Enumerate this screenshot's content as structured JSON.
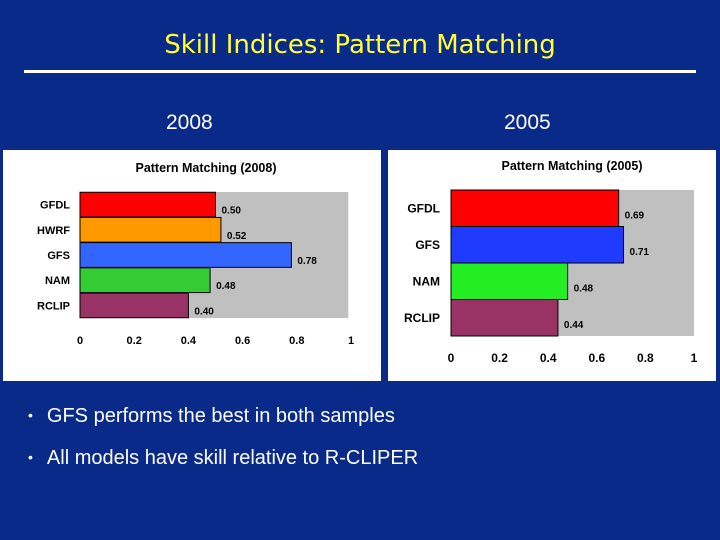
{
  "slide": {
    "title": "Skill Indices: Pattern Matching",
    "left_year": "2008",
    "right_year": "2005",
    "bullets": [
      "GFS performs the best in both samples",
      "All models have skill relative to R-CLIPER"
    ]
  },
  "colors": {
    "background": "#0A2A8A",
    "title": "#FFFF33",
    "plot_area": "#C0C0C0"
  },
  "chart_data": [
    {
      "type": "bar",
      "orientation": "horizontal",
      "title": "Pattern Matching (2008)",
      "categories": [
        "GFDL",
        "HWRF",
        "GFS",
        "NAM",
        "RCLIP"
      ],
      "values": [
        0.5,
        0.52,
        0.78,
        0.48,
        0.4
      ],
      "value_labels": [
        "0.50",
        "0.52",
        "0.78",
        "0.48",
        "0.40"
      ],
      "colors": [
        "#FF0000",
        "#FF9900",
        "#3366FF",
        "#33CC33",
        "#993366"
      ],
      "xlim": [
        0,
        1
      ],
      "xticks": [
        "0",
        "0.2",
        "0.4",
        "0.6",
        "0.8",
        "1"
      ],
      "plot_limit": 0.99,
      "grid": false
    },
    {
      "type": "bar",
      "orientation": "horizontal",
      "title": "Pattern Matching (2005)",
      "categories": [
        "GFDL",
        "GFS",
        "NAM",
        "RCLIP"
      ],
      "values": [
        0.69,
        0.71,
        0.48,
        0.44
      ],
      "value_labels": [
        "0.69",
        "0.71",
        "0.48",
        "0.44"
      ],
      "colors": [
        "#FF0000",
        "#1E3BFF",
        "#22EE22",
        "#993366"
      ],
      "xlim": [
        0,
        1
      ],
      "xticks": [
        "0",
        "0.2",
        "0.4",
        "0.6",
        "0.8",
        "1"
      ],
      "plot_limit": 1.0,
      "grid": false
    }
  ]
}
